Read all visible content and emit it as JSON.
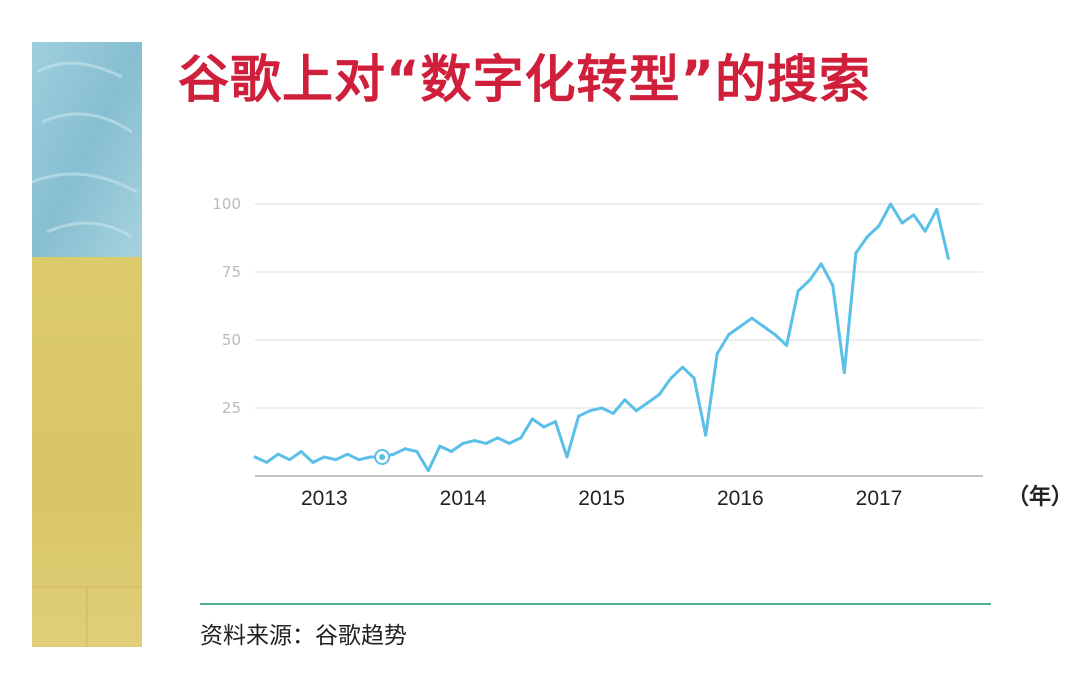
{
  "title": "谷歌上对“数字化转型”的搜索",
  "source": "资料来源：谷歌趋势",
  "colors": {
    "title": "#cf1f3a",
    "line": "#5bc0e8",
    "grid": "#dddddd",
    "rule": "#4caf90",
    "art_top": "#8fc4d4",
    "art_bottom": "#d9c868"
  },
  "chart_data": {
    "type": "line",
    "unit_label": "（年）",
    "y_ticks": [
      25,
      50,
      75,
      100
    ],
    "ylim": [
      0,
      100
    ],
    "x_ticks": [
      "2013",
      "2014",
      "2015",
      "2016",
      "2017"
    ],
    "xlim": [
      "2012-07",
      "2017-10"
    ],
    "grid": true,
    "highlight": {
      "x": "2013-06",
      "y": 7
    },
    "series": [
      {
        "points": [
          [
            "2012-07",
            7
          ],
          [
            "2012-08",
            5
          ],
          [
            "2012-09",
            8
          ],
          [
            "2012-10",
            6
          ],
          [
            "2012-11",
            9
          ],
          [
            "2012-12",
            5
          ],
          [
            "2013-01",
            7
          ],
          [
            "2013-02",
            6
          ],
          [
            "2013-03",
            8
          ],
          [
            "2013-04",
            6
          ],
          [
            "2013-05",
            7
          ],
          [
            "2013-06",
            7
          ],
          [
            "2013-07",
            8
          ],
          [
            "2013-08",
            10
          ],
          [
            "2013-09",
            9
          ],
          [
            "2013-10",
            2
          ],
          [
            "2013-11",
            11
          ],
          [
            "2013-12",
            9
          ],
          [
            "2014-01",
            12
          ],
          [
            "2014-02",
            13
          ],
          [
            "2014-03",
            12
          ],
          [
            "2014-04",
            14
          ],
          [
            "2014-05",
            12
          ],
          [
            "2014-06",
            14
          ],
          [
            "2014-07",
            21
          ],
          [
            "2014-08",
            18
          ],
          [
            "2014-09",
            20
          ],
          [
            "2014-10",
            7
          ],
          [
            "2014-11",
            22
          ],
          [
            "2014-12",
            24
          ],
          [
            "2015-01",
            25
          ],
          [
            "2015-02",
            23
          ],
          [
            "2015-03",
            28
          ],
          [
            "2015-04",
            24
          ],
          [
            "2015-05",
            27
          ],
          [
            "2015-06",
            30
          ],
          [
            "2015-07",
            36
          ],
          [
            "2015-08",
            40
          ],
          [
            "2015-09",
            36
          ],
          [
            "2015-10",
            15
          ],
          [
            "2015-11",
            45
          ],
          [
            "2015-12",
            52
          ],
          [
            "2016-01",
            55
          ],
          [
            "2016-02",
            58
          ],
          [
            "2016-03",
            55
          ],
          [
            "2016-04",
            52
          ],
          [
            "2016-05",
            48
          ],
          [
            "2016-06",
            68
          ],
          [
            "2016-07",
            72
          ],
          [
            "2016-08",
            78
          ],
          [
            "2016-09",
            70
          ],
          [
            "2016-10",
            38
          ],
          [
            "2016-11",
            82
          ],
          [
            "2016-12",
            88
          ],
          [
            "2017-01",
            92
          ],
          [
            "2017-02",
            100
          ],
          [
            "2017-03",
            93
          ],
          [
            "2017-04",
            96
          ],
          [
            "2017-05",
            90
          ],
          [
            "2017-06",
            98
          ],
          [
            "2017-07",
            80
          ]
        ]
      }
    ]
  }
}
